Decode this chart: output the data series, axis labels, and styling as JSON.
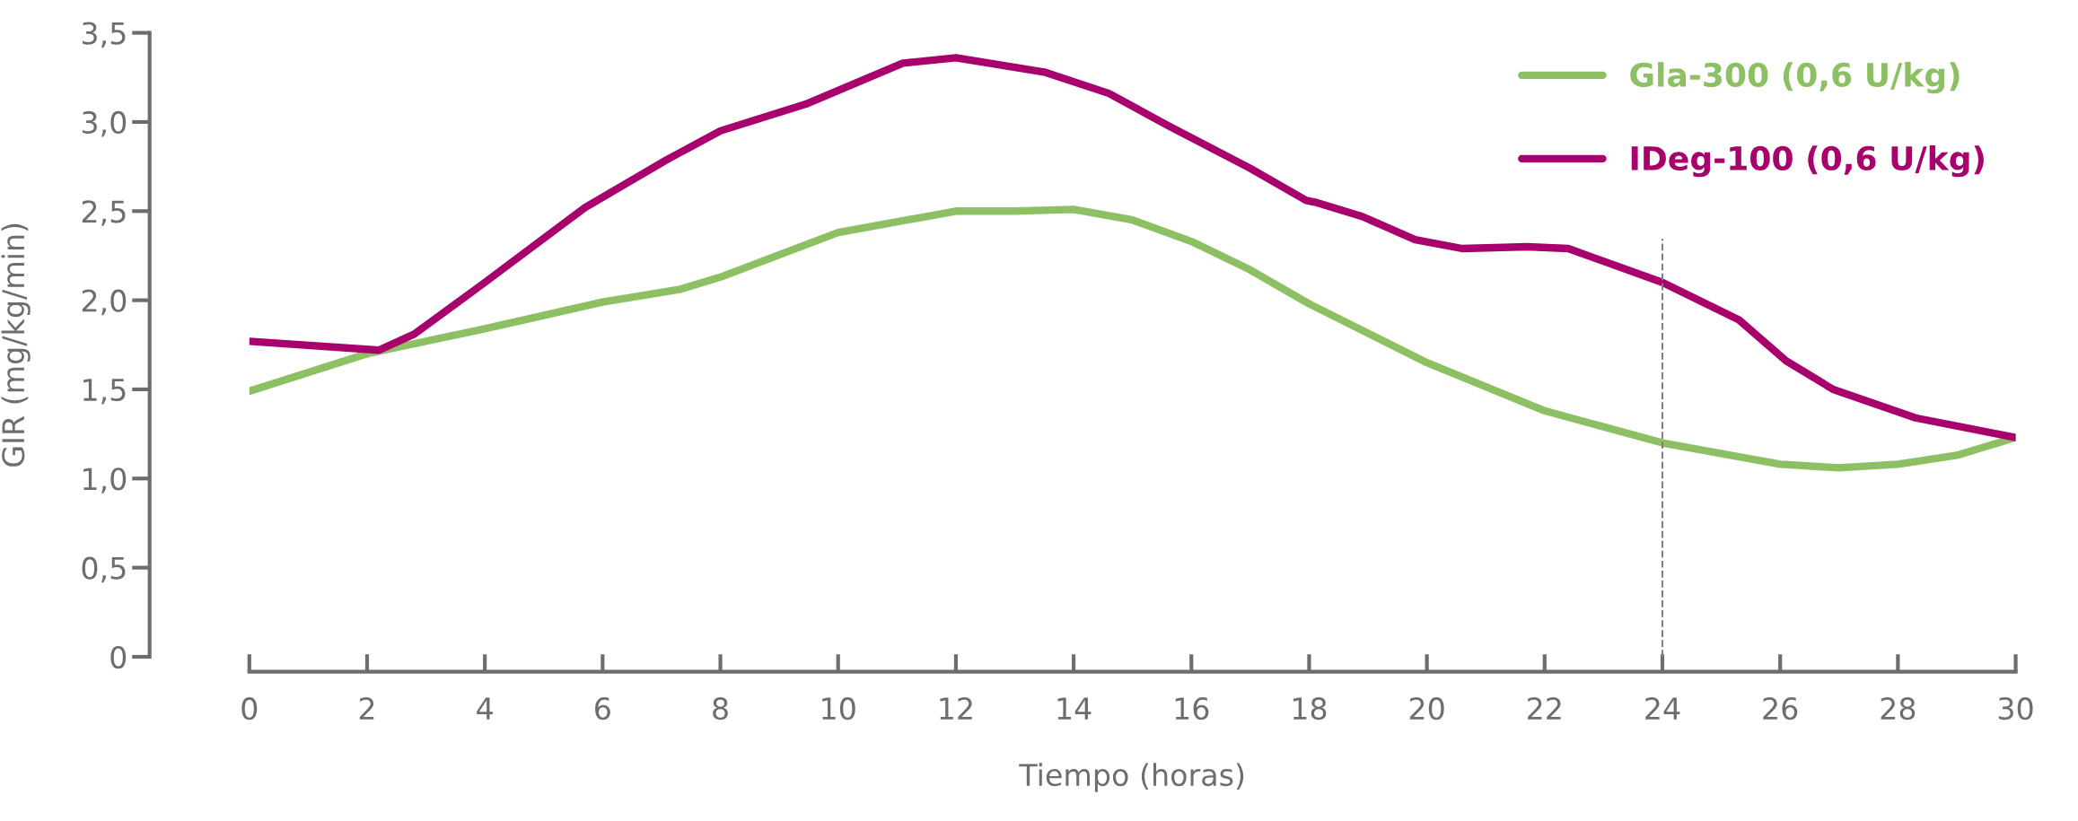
{
  "chart_data": {
    "type": "line",
    "xlabel": "Tiempo (horas)",
    "ylabel": "GIR (mg/kg/min)",
    "xlim": [
      0,
      30
    ],
    "xticks": [
      0,
      2,
      4,
      6,
      8,
      10,
      12,
      14,
      16,
      18,
      20,
      22,
      24,
      26,
      28,
      30
    ],
    "ylim": [
      0,
      3.5
    ],
    "yticks": [
      0,
      {
        "value": 0.5,
        "label": "0,5"
      },
      {
        "value": 1.0,
        "label": "1,0"
      },
      {
        "value": 1.5,
        "label": "1,5"
      },
      {
        "value": 2.0,
        "label": "2,0"
      },
      {
        "value": 2.5,
        "label": "2,5"
      },
      {
        "value": 3.0,
        "label": "3,0"
      },
      {
        "value": 3.5,
        "label": "3,5"
      }
    ],
    "grid": false,
    "legend": "top right",
    "marker": "none",
    "line_style": "solid",
    "ref_lines": [
      {
        "axis": "x",
        "value": 24,
        "color": "#808080",
        "line_style": "dashed"
      }
    ],
    "series": [
      {
        "name": "Gla-300 (0,6 U/kg)",
        "color": "#8cc063",
        "x": [
          0,
          2,
          4,
          6,
          7.3,
          8,
          10,
          12,
          13,
          14,
          15,
          16,
          17,
          18,
          20,
          22,
          24,
          26,
          27,
          28,
          29,
          30
        ],
        "values": [
          1.49,
          1.7,
          1.84,
          1.99,
          2.06,
          2.13,
          2.38,
          2.5,
          2.5,
          2.51,
          2.45,
          2.33,
          2.17,
          1.98,
          1.65,
          1.38,
          1.2,
          1.08,
          1.06,
          1.08,
          1.13,
          1.23
        ]
      },
      {
        "name": "IDeg-100 (0,6 U/kg)",
        "color": "#a8006c",
        "x": [
          0,
          2.2,
          2.8,
          4,
          5.7,
          7.1,
          8,
          9.45,
          11.1,
          12,
          13.5,
          14.6,
          15.6,
          17,
          17.95,
          18.1,
          18.9,
          19.8,
          20.6,
          21.7,
          22.4,
          24,
          25.3,
          26.1,
          26.9,
          28.3,
          30
        ],
        "values": [
          1.77,
          1.72,
          1.81,
          2.1,
          2.52,
          2.79,
          2.95,
          3.1,
          3.33,
          3.36,
          3.28,
          3.16,
          2.98,
          2.74,
          2.56,
          2.55,
          2.47,
          2.34,
          2.29,
          2.3,
          2.29,
          2.1,
          1.89,
          1.66,
          1.5,
          1.34,
          1.23
        ]
      }
    ]
  }
}
